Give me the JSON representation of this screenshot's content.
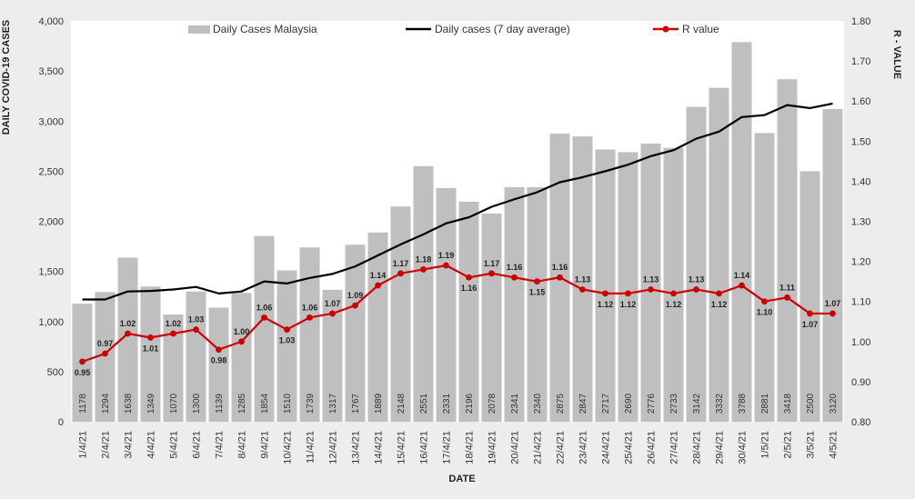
{
  "chart_data": {
    "type": "bar",
    "categories": [
      "1/4/21",
      "2/4/21",
      "3/4/21",
      "4/4/21",
      "5/4/21",
      "6/4/21",
      "7/4/21",
      "8/4/21",
      "9/4/21",
      "10/4/21",
      "11/4/21",
      "12/4/21",
      "13/4/21",
      "14/4/21",
      "15/4/21",
      "16/4/21",
      "17/4/21",
      "18/4/21",
      "19/4/21",
      "20/4/21",
      "21/4/21",
      "22/4/21",
      "23/4/21",
      "24/4/21",
      "25/4/21",
      "26/4/21",
      "27/4/21",
      "28/4/21",
      "29/4/21",
      "30/4/21",
      "1/5/21",
      "2/5/21",
      "3/5/21",
      "4/5/21"
    ],
    "series": [
      {
        "name": "Daily Cases Malaysia",
        "type": "bar",
        "axis": "left",
        "color": "#bfbfbf",
        "values": [
          1178,
          1294,
          1638,
          1349,
          1070,
          1300,
          1139,
          1285,
          1854,
          1510,
          1739,
          1317,
          1767,
          1889,
          2148,
          2551,
          2331,
          2196,
          2078,
          2341,
          2340,
          2875,
          2847,
          2717,
          2690,
          2776,
          2733,
          3142,
          3332,
          3788,
          2881,
          3418,
          2500,
          3120
        ]
      },
      {
        "name": "Daily cases (7 day average)",
        "type": "line",
        "axis": "left",
        "color": "#000000",
        "values": [
          1220,
          1220,
          1300,
          1305,
          1320,
          1345,
          1280,
          1300,
          1400,
          1380,
          1435,
          1475,
          1550,
          1660,
          1770,
          1870,
          1980,
          2040,
          2145,
          2220,
          2290,
          2390,
          2440,
          2500,
          2565,
          2650,
          2710,
          2825,
          2895,
          3040,
          3060,
          3160,
          3130,
          3175
        ]
      },
      {
        "name": "R value",
        "type": "line",
        "axis": "right",
        "color": "#cc0000",
        "values": [
          0.95,
          0.97,
          1.02,
          1.01,
          1.02,
          1.03,
          0.98,
          1.0,
          1.06,
          1.03,
          1.06,
          1.07,
          1.09,
          1.14,
          1.17,
          1.18,
          1.19,
          1.16,
          1.17,
          1.16,
          1.15,
          1.16,
          1.13,
          1.12,
          1.12,
          1.13,
          1.12,
          1.13,
          1.12,
          1.14,
          1.1,
          1.11,
          1.07,
          1.07
        ]
      }
    ],
    "data_labels": {
      "bars": [
        "1178",
        "1294",
        "1638",
        "1349",
        "1070",
        "1300",
        "1139",
        "1285",
        "1854",
        "1510",
        "1739",
        "1317",
        "1767",
        "1889",
        "2148",
        "2551",
        "2331",
        "2196",
        "2078",
        "2341",
        "2340",
        "2875",
        "2847",
        "2717",
        "2690",
        "2776",
        "2733",
        "3142",
        "3332",
        "3788",
        "2881",
        "3418",
        "2500",
        "3120"
      ],
      "r_values": [
        "0.95",
        "0.97",
        "1.02",
        "1.01",
        "1.02",
        "1.03",
        "0.98",
        "1.00",
        "1.06",
        "1.03",
        "1.06",
        "1.07",
        "1.09",
        "1.14",
        "1.17",
        "1.18",
        "1.19",
        "1.16",
        "1.17",
        "1.16",
        "1.15",
        "1.16",
        "1.13",
        "1.12",
        "1.12",
        "1.13",
        "1.12",
        "1.13",
        "1.12",
        "1.14",
        "1.10",
        "1.11",
        "1.07",
        "1.07"
      ]
    },
    "title": "",
    "xlabel": "DATE",
    "ylabel": "DAILY COVID-19 CASES",
    "y2label": "R - VALUE",
    "ylim": [
      0,
      4000
    ],
    "y2lim": [
      0.8,
      1.8
    ],
    "yticks": [
      "0",
      "500",
      "1,000",
      "1,500",
      "2,000",
      "2,500",
      "3,000",
      "3,500",
      "4,000"
    ],
    "y2ticks": [
      "0.80",
      "0.90",
      "1.00",
      "1.10",
      "1.20",
      "1.30",
      "1.40",
      "1.50",
      "1.60",
      "1.70",
      "1.80"
    ],
    "legend_position": "top",
    "grid": false,
    "plot_background": "#ffffff"
  }
}
